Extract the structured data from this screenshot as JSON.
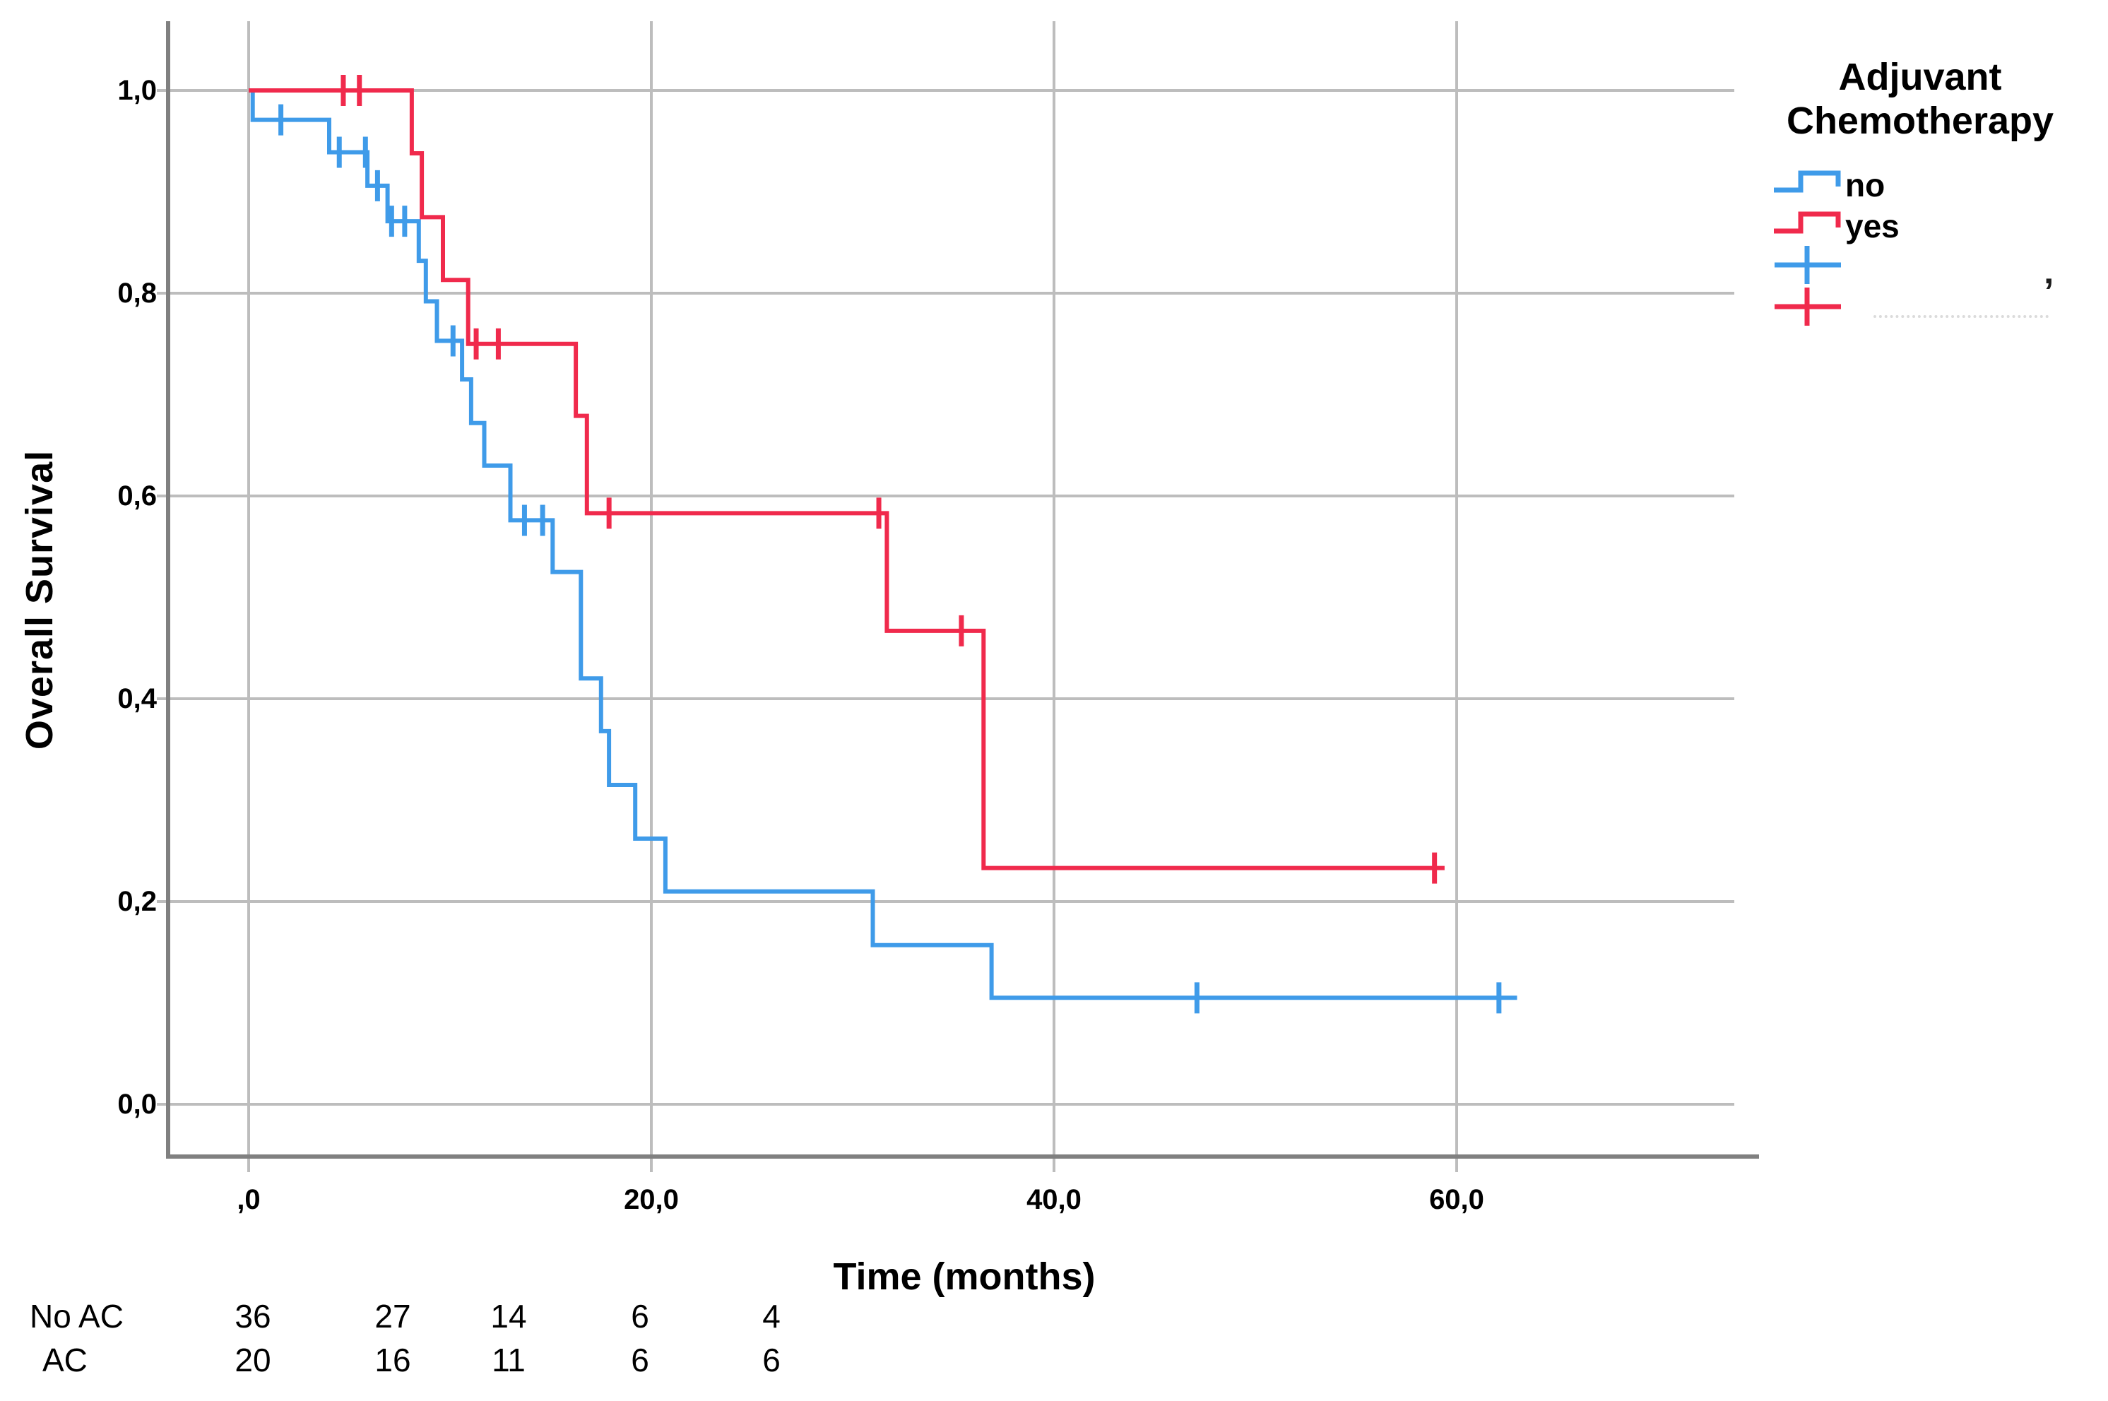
{
  "chart_data": {
    "type": "line",
    "subtype": "kaplan-meier-step",
    "title": "",
    "xlabel": "Time (months)",
    "ylabel": "Overall Survival",
    "x_axis_range": [
      0,
      73.8
    ],
    "y_axis_range": [
      0,
      1.0
    ],
    "grid": true,
    "x_ticks": [
      {
        "value": 0,
        "label": ",0"
      },
      {
        "value": 20,
        "label": "20,0"
      },
      {
        "value": 40,
        "label": "40,0"
      },
      {
        "value": 60,
        "label": "60,0"
      }
    ],
    "y_ticks": [
      {
        "value": 1.0,
        "label": "1,0"
      },
      {
        "value": 0.8,
        "label": "0,8"
      },
      {
        "value": 0.6,
        "label": "0,6"
      },
      {
        "value": 0.4,
        "label": "0,4"
      },
      {
        "value": 0.2,
        "label": "0,2"
      },
      {
        "value": 0.0,
        "label": "0,0"
      }
    ],
    "legend": {
      "title_line1": "Adjuvant",
      "title_line2": "Chemotherapy",
      "items": [
        {
          "label": "no",
          "type": "step",
          "color": "#3F9BE9"
        },
        {
          "label": "yes",
          "type": "step",
          "color": "#F02A4C"
        },
        {
          "label": "",
          "type": "censor",
          "color": "#3F9BE9"
        },
        {
          "label": "",
          "type": "censor",
          "color": "#F02A4C"
        }
      ]
    },
    "series": [
      {
        "name": "no",
        "color": "#3F9BE9",
        "start_survival": 1.0,
        "steps": [
          [
            0.2,
            0.971
          ],
          [
            4.0,
            0.939
          ],
          [
            5.9,
            0.906
          ],
          [
            6.9,
            0.871
          ],
          [
            8.45,
            0.832
          ],
          [
            8.8,
            0.792
          ],
          [
            9.35,
            0.753
          ],
          [
            10.6,
            0.715
          ],
          [
            11.05,
            0.672
          ],
          [
            11.7,
            0.63
          ],
          [
            13.0,
            0.576
          ],
          [
            15.1,
            0.525
          ],
          [
            16.5,
            0.42
          ],
          [
            17.5,
            0.368
          ],
          [
            17.9,
            0.315
          ],
          [
            19.2,
            0.262
          ],
          [
            20.7,
            0.21
          ],
          [
            31.0,
            0.157
          ],
          [
            36.9,
            0.105
          ]
        ],
        "end_time": 63.0,
        "censors": [
          [
            1.6,
            0.971
          ],
          [
            4.5,
            0.939
          ],
          [
            5.8,
            0.939
          ],
          [
            6.4,
            0.906
          ],
          [
            7.1,
            0.871
          ],
          [
            7.75,
            0.871
          ],
          [
            10.15,
            0.753
          ],
          [
            13.7,
            0.576
          ],
          [
            14.6,
            0.576
          ],
          [
            47.1,
            0.105
          ],
          [
            62.1,
            0.105
          ]
        ]
      },
      {
        "name": "yes",
        "color": "#F02A4C",
        "start_survival": 1.0,
        "steps": [
          [
            8.1,
            0.938
          ],
          [
            8.6,
            0.875
          ],
          [
            9.65,
            0.813
          ],
          [
            10.9,
            0.75
          ],
          [
            16.25,
            0.679
          ],
          [
            16.8,
            0.583
          ],
          [
            31.7,
            0.467
          ],
          [
            36.5,
            0.233
          ]
        ],
        "end_time": 59.4,
        "censors": [
          [
            4.7,
            1.0
          ],
          [
            5.5,
            1.0
          ],
          [
            11.3,
            0.75
          ],
          [
            12.4,
            0.75
          ],
          [
            17.9,
            0.583
          ],
          [
            31.3,
            0.583
          ],
          [
            35.4,
            0.467
          ],
          [
            58.9,
            0.233
          ]
        ]
      }
    ],
    "risk_table": {
      "rows": [
        {
          "label": "No AC",
          "counts": [
            "36",
            "27",
            "14",
            "6",
            "4"
          ]
        },
        {
          "label": "AC",
          "counts": [
            "20",
            "16",
            "11",
            "6",
            "6"
          ]
        }
      ]
    },
    "colors": {
      "no": "#3F9BE9",
      "yes": "#F02A4C",
      "grid": "#BDBDBD",
      "axis": "#808080",
      "text": "#000000"
    },
    "artifacts": {
      "apostrophe": "’"
    }
  }
}
